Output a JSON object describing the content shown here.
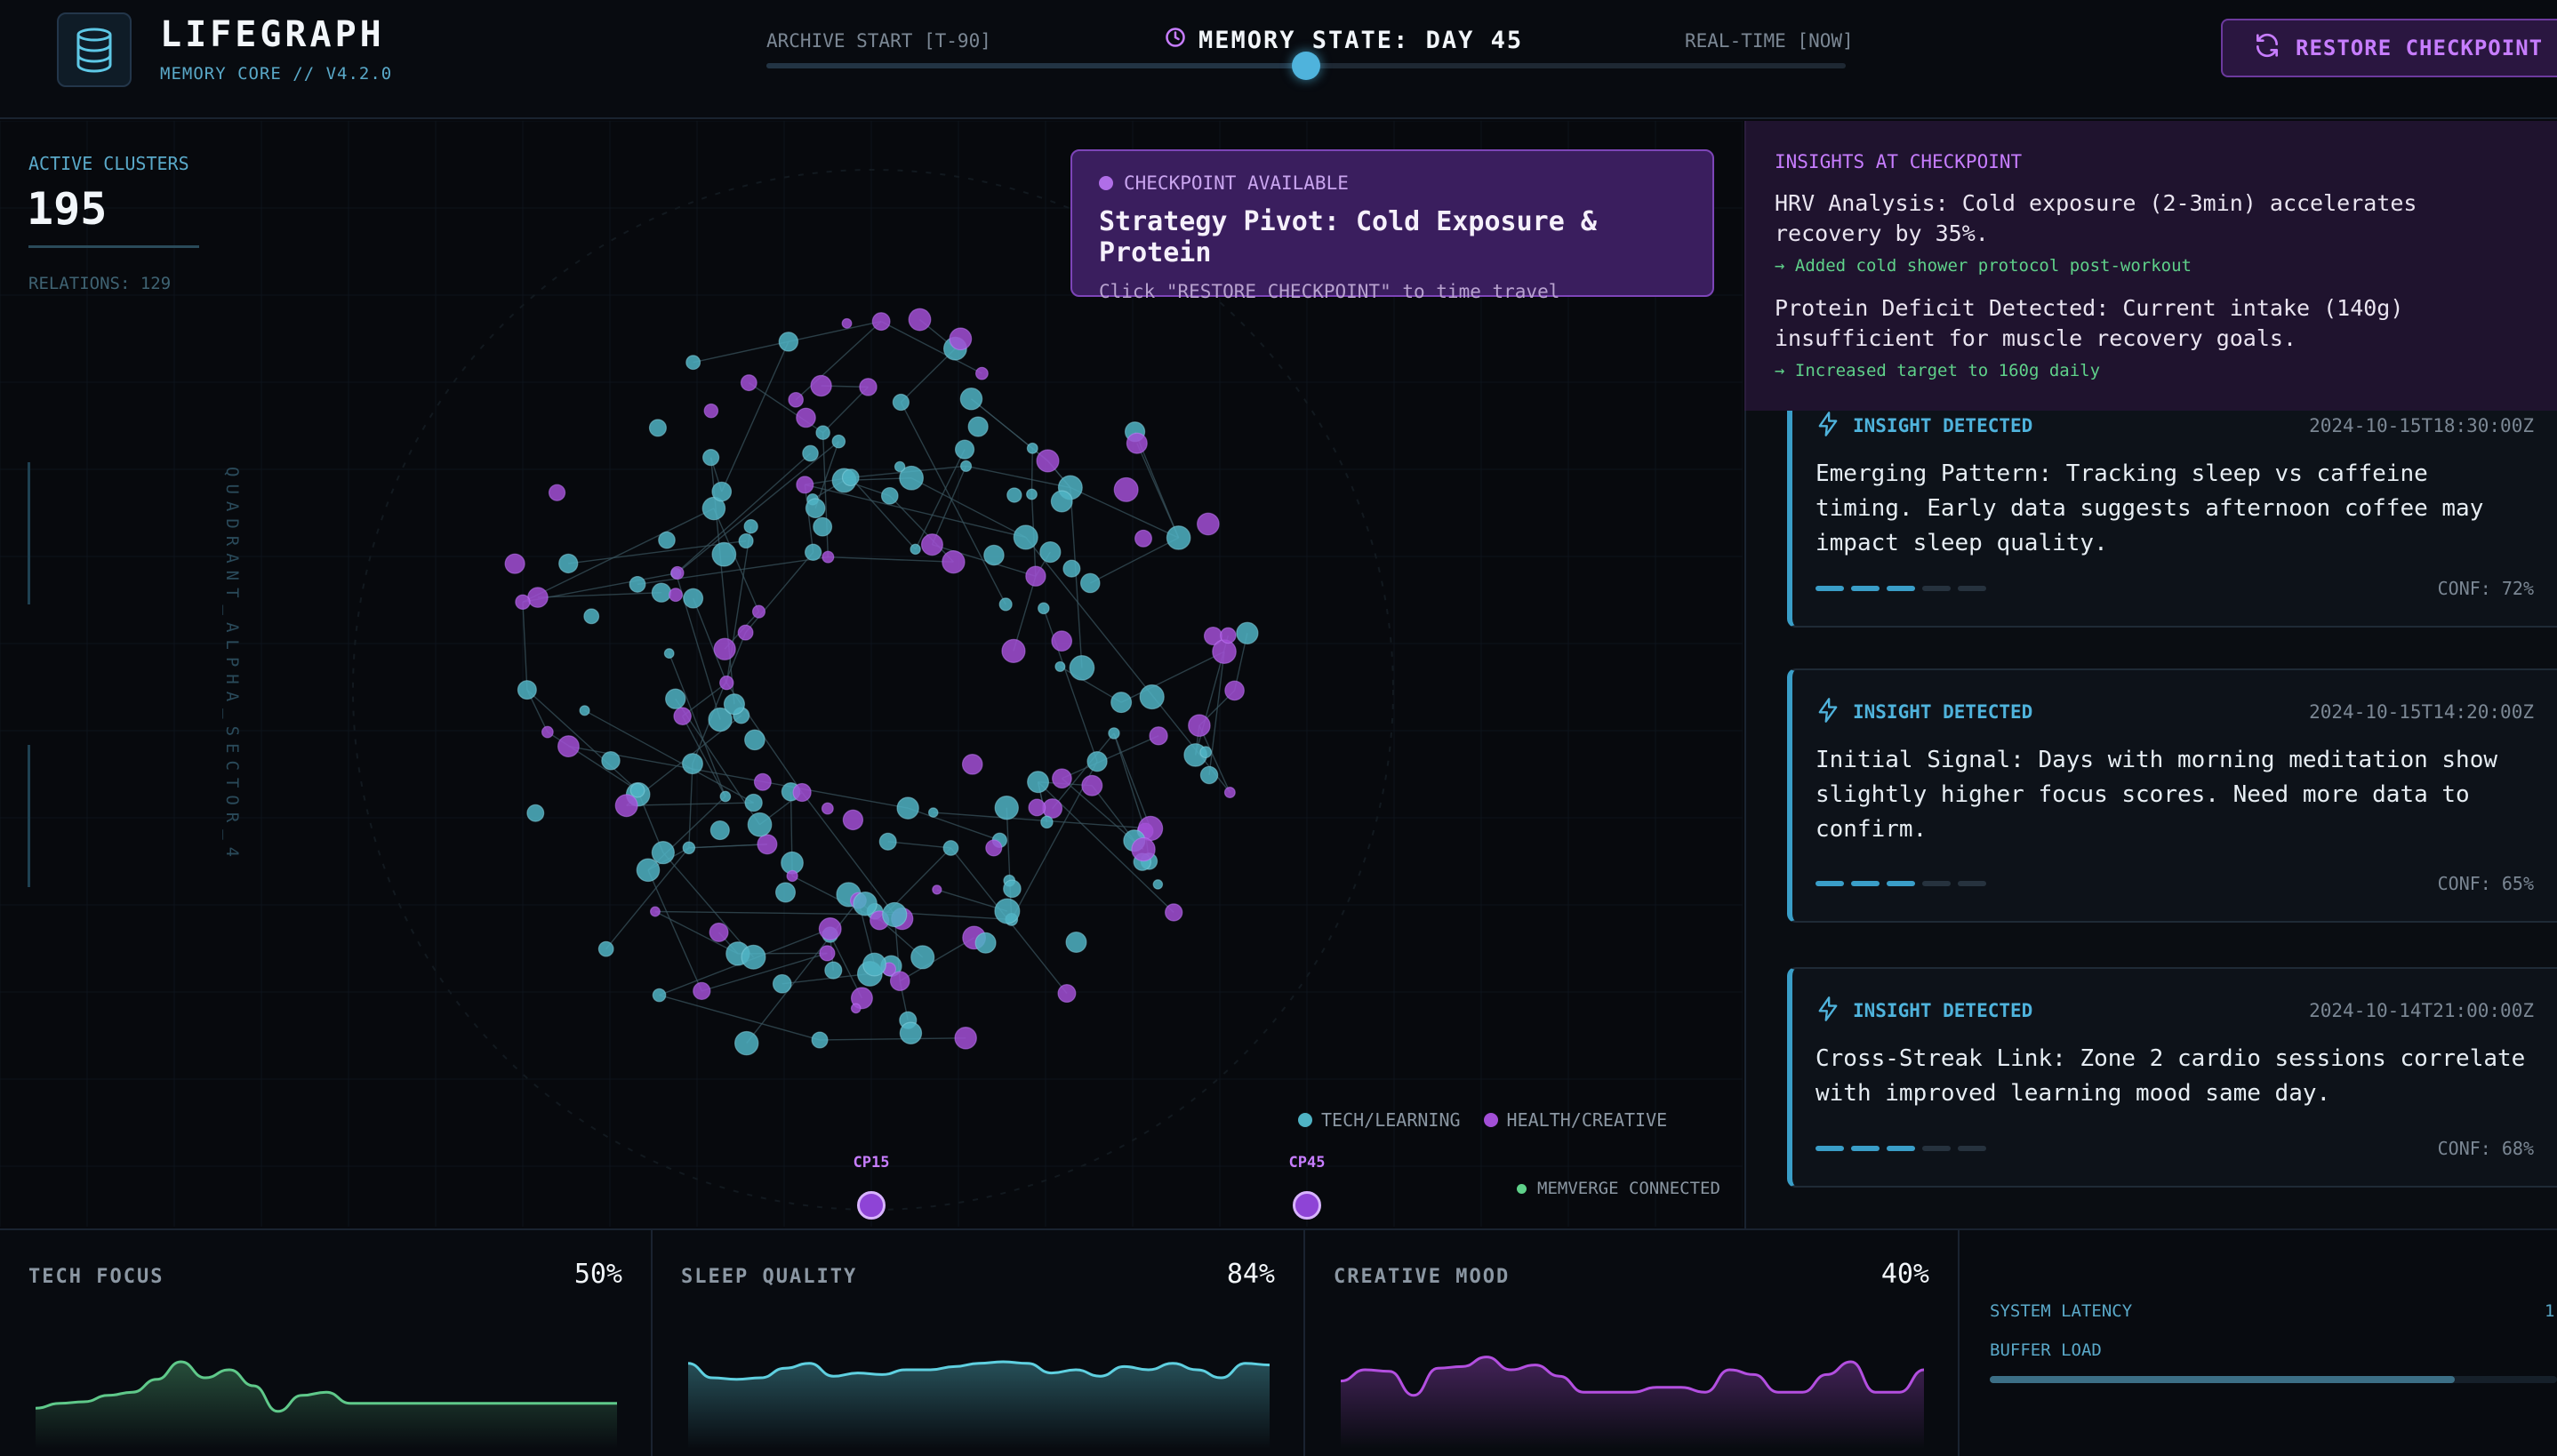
{
  "app": {
    "title": "LIFEGRAPH",
    "subtitle": "MEMORY CORE // V4.2.0",
    "logo_icon": "database-icon"
  },
  "timeline": {
    "start_label": "ARCHIVE START [T-90]",
    "end_label": "REAL-TIME [NOW]",
    "state_label": "MEMORY STATE: DAY 45",
    "position_fraction": 0.5
  },
  "restore_button": {
    "label": "RESTORE CHECKPOINT",
    "icon": "refresh-icon"
  },
  "stats": {
    "clusters_label": "ACTIVE CLUSTERS",
    "clusters_value": "195",
    "relations": "RELATIONS: 129",
    "quadrant": "QUADRANT_ALPHA_SECTOR_4"
  },
  "checkpoint_card": {
    "status": "CHECKPOINT AVAILABLE",
    "title": "Strategy Pivot: Cold Exposure & Protein",
    "hint": "Click \"RESTORE CHECKPOINT\" to time travel"
  },
  "checkpoint_insights": {
    "title": "INSIGHTS AT CHECKPOINT",
    "items": [
      {
        "text": "HRV Analysis: Cold exposure (2-3min) accelerates recovery by 35%.",
        "action": "→ Added cold shower protocol post-workout"
      },
      {
        "text": "Protein Deficit Detected: Current intake (140g) insufficient for muscle recovery goals.",
        "action": "→ Increased target to 160g daily"
      }
    ]
  },
  "insight_cards": [
    {
      "type": "INSIGHT DETECTED",
      "timestamp": "2024-10-15T18:30:00Z",
      "text": "Emerging Pattern: Tracking sleep vs caffeine timing. Early data suggests afternoon coffee may impact sleep quality.",
      "confidence": "CONF: 72%",
      "bars_on": 3
    },
    {
      "type": "INSIGHT DETECTED",
      "timestamp": "2024-10-15T14:20:00Z",
      "text": "Initial Signal: Days with morning meditation show slightly higher focus scores. Need more data to confirm.",
      "confidence": "CONF: 65%",
      "bars_on": 3
    },
    {
      "type": "INSIGHT DETECTED",
      "timestamp": "2024-10-14T21:00:00Z",
      "text": "Cross-Streak Link: Zone 2 cardio sessions correlate with improved learning mood same day.",
      "confidence": "CONF: 68%",
      "bars_on": 3
    }
  ],
  "legend": [
    {
      "label": "TECH/LEARNING",
      "color": "#4fb3c4"
    },
    {
      "label": "HEALTH/CREATIVE",
      "color": "#a24fd6"
    }
  ],
  "checkpoints": [
    {
      "label": "CP15"
    },
    {
      "label": "CP45"
    }
  ],
  "connection_status": "MEMVERGE CONNECTED",
  "metrics": [
    {
      "label": "TECH FOCUS",
      "value": "50%",
      "color": "#5fc98a"
    },
    {
      "label": "SLEEP QUALITY",
      "value": "84%",
      "color": "#5fd0e0"
    },
    {
      "label": "CREATIVE MOOD",
      "value": "40%",
      "color": "#b34fe0"
    }
  ],
  "system": {
    "latency_label": "SYSTEM LATENCY",
    "latency_value": "1",
    "buffer_label": "BUFFER LOAD",
    "buffer_fraction": 0.82
  },
  "colors": {
    "accent": "#4fb3dc",
    "purple": "#c77dff",
    "teal_node": "#4fb3c4",
    "purple_node": "#a24fd6",
    "success": "#5fd18a"
  }
}
